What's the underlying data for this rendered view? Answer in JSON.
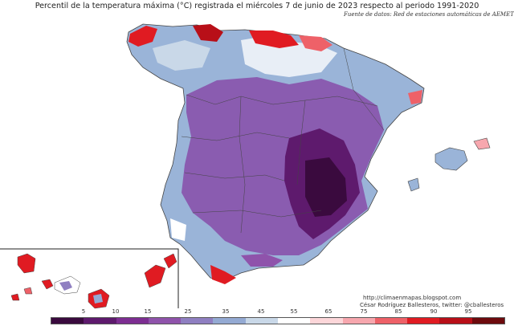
{
  "title": "Percentil de la temperatura máxima (°C) registrada el miércoles 7 de junio de 2023 respecto al periodo 1991-2020",
  "source": "Fuente de datos: Red de estaciones automáticas de AEMET",
  "credits": {
    "blog": "http://climaenmapas.blogspot.com",
    "author": "César Rodríguez Ballesteros, twitter: @cballesteros"
  },
  "legend": {
    "ticks": [
      "5",
      "10",
      "15",
      "25",
      "35",
      "45",
      "55",
      "65",
      "75",
      "85",
      "90",
      "95"
    ],
    "colors": [
      "#3a0a3e",
      "#5e1a6d",
      "#7d2e92",
      "#8f53ab",
      "#8f7fc1",
      "#94aad3",
      "#c9d8e8",
      "#ffffff",
      "#fcd6d9",
      "#f7a7ae",
      "#ee6168",
      "#e01b22",
      "#b80f18",
      "#6d0a0d"
    ]
  }
}
